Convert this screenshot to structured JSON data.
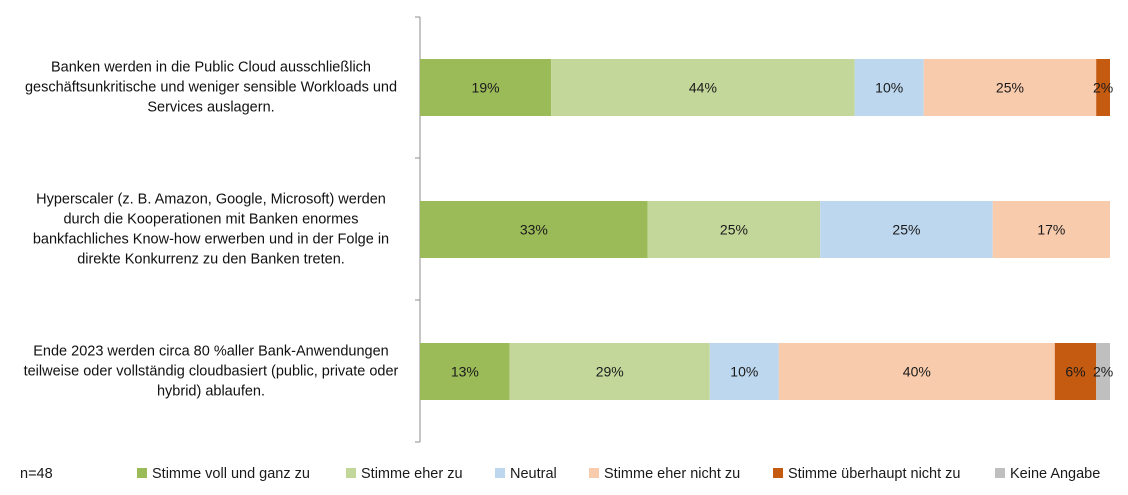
{
  "chart_data": {
    "type": "bar",
    "orientation": "horizontal",
    "stacked": true,
    "percent_stacked": true,
    "categories": [
      "Banken werden in die Public Cloud ausschließlich geschäftsunkritische und weniger sensible Workloads und Services auslagern.",
      "Hyperscaler (z. B. Amazon, Google, Microsoft) werden durch die Kooperationen mit Banken enormes bankfachliches Know-how erwerben und in der Folge in direkte Konkurrenz zu den Banken treten.",
      "Ende 2023 werden circa 80 %aller Bank-Anwendungen teilweise oder vollständig cloudbasiert (public, private oder hybrid) ablaufen."
    ],
    "category_lines": [
      [
        "Banken werden in die Public Cloud ausschließlich",
        "geschäftsunkritische und weniger sensible Workloads und",
        "Services auslagern."
      ],
      [
        "Hyperscaler (z. B. Amazon, Google, Microsoft) werden",
        "durch die Kooperationen mit Banken enormes",
        "bankfachliches Know-how erwerben und in der Folge in",
        "direkte Konkurrenz zu den Banken treten."
      ],
      [
        "Ende 2023 werden circa 80 %aller Bank-Anwendungen",
        "teilweise oder vollständig cloudbasiert (public, private oder",
        "hybrid) ablaufen."
      ]
    ],
    "series": [
      {
        "name": "Stimme voll und ganz zu",
        "color": "#9bbb59",
        "values": [
          19,
          33,
          13
        ],
        "labels": [
          "19%",
          "33%",
          "13%"
        ]
      },
      {
        "name": "Stimme eher zu",
        "color": "#c4d79b",
        "values": [
          44,
          25,
          29
        ],
        "labels": [
          "44%",
          "25%",
          "29%"
        ]
      },
      {
        "name": "Neutral",
        "color": "#bdd7ee",
        "values": [
          10,
          25,
          10
        ],
        "labels": [
          "10%",
          "25%",
          "10%"
        ]
      },
      {
        "name": "Stimme eher nicht zu",
        "color": "#f8cbad",
        "values": [
          25,
          17,
          40
        ],
        "labels": [
          "25%",
          "17%",
          "40%"
        ]
      },
      {
        "name": "Stimme überhaupt nicht zu",
        "color": "#c55a11",
        "values": [
          2,
          0,
          6
        ],
        "labels": [
          "2%",
          "",
          "6%"
        ]
      },
      {
        "name": "Keine Angabe",
        "color": "#bfbfbf",
        "values": [
          0,
          0,
          2
        ],
        "labels": [
          "",
          "",
          "2%"
        ]
      }
    ],
    "legend_position": "bottom",
    "grid": false
  },
  "footnote": "n=48"
}
